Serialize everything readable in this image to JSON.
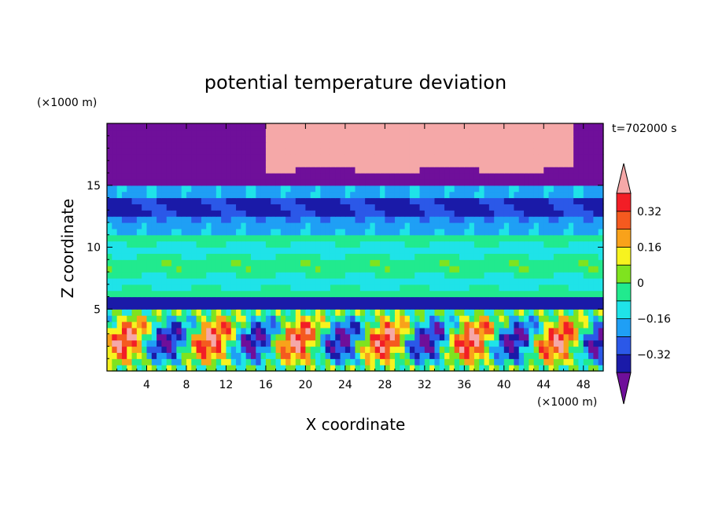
{
  "chart_data": {
    "type": "heatmap",
    "title": "potential temperature deviation",
    "time_label": "t=702000 s",
    "xlabel": "X coordinate",
    "ylabel": "Z coordinate",
    "x_unit": "(×1000 m)",
    "y_unit": "(×1000 m)",
    "xlim": [
      0,
      50
    ],
    "ylim": [
      0,
      20
    ],
    "x_ticks": [
      4,
      8,
      12,
      16,
      20,
      24,
      28,
      32,
      36,
      40,
      44,
      48
    ],
    "y_ticks": [
      5,
      10,
      15
    ],
    "colorbar": {
      "levels": [
        -0.4,
        -0.32,
        -0.24,
        -0.16,
        -0.08,
        0,
        0.08,
        0.16,
        0.24,
        0.32,
        0.4
      ],
      "tick_labels": [
        "0.32",
        "0.16",
        "0",
        "−0.16",
        "−0.32"
      ],
      "tick_values": [
        0.32,
        0.16,
        0,
        -0.16,
        -0.32
      ],
      "colors": [
        "#6f0f9a",
        "#1a1aa8",
        "#2b58e8",
        "#1f9ff5",
        "#1fe3e8",
        "#21ea8e",
        "#7fe31f",
        "#f7f31f",
        "#f9a21a",
        "#f55a1f",
        "#f21e26",
        "#f5a8a8"
      ],
      "extend": "both"
    },
    "field": {
      "nx": 100,
      "nz": 40,
      "stratospheric_top": 15,
      "tropopause_band": [
        12.6,
        13.8
      ],
      "boundary_layer_top": 5.3,
      "description_only_by_values": true
    }
  }
}
